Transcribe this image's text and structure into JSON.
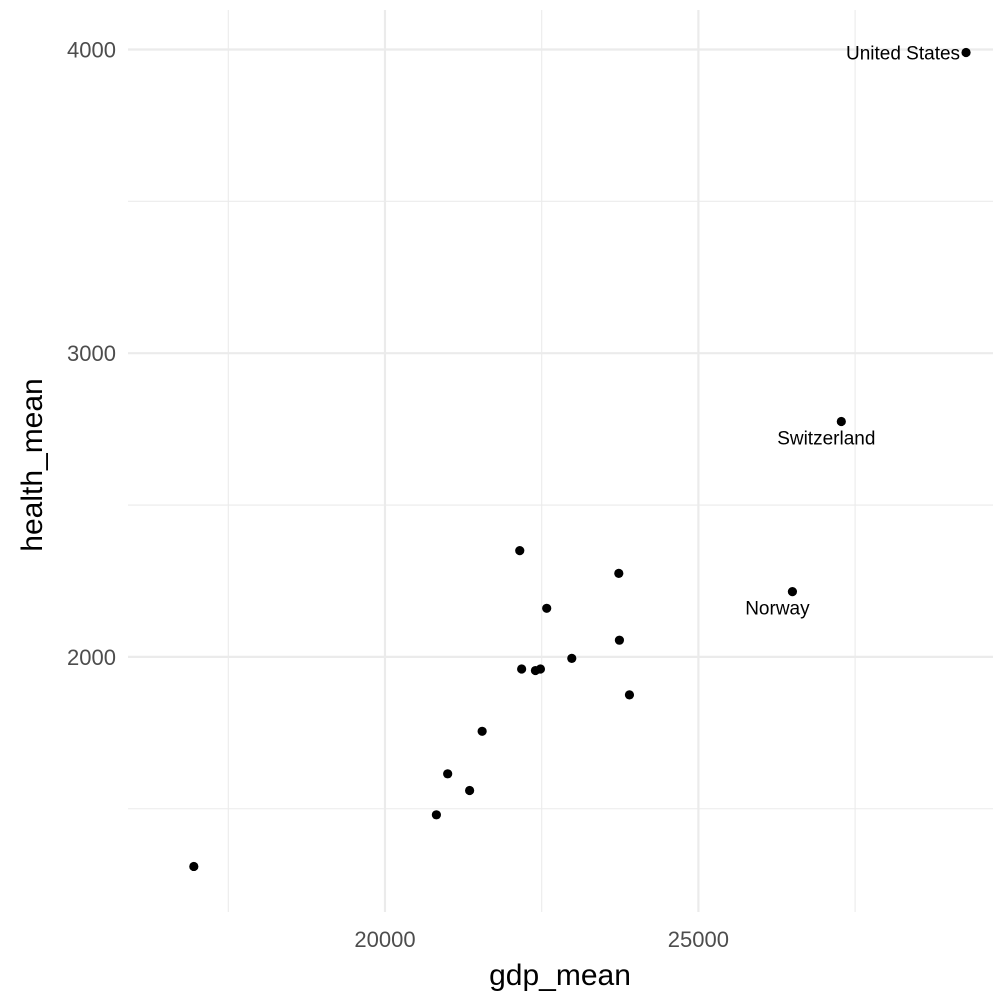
{
  "chart_data": {
    "type": "scatter",
    "title": "",
    "xlabel": "gdp_mean",
    "ylabel": "health_mean",
    "xlim": [
      15900,
      29700
    ],
    "ylim": [
      1160,
      4130
    ],
    "x_major_ticks": [
      20000,
      25000
    ],
    "x_minor_ticks": [
      17500,
      22500,
      27500
    ],
    "y_major_ticks": [
      2000,
      3000,
      4000
    ],
    "y_minor_ticks": [
      1500,
      2500,
      3500
    ],
    "x_tick_labels": [
      "20000",
      "25000"
    ],
    "y_tick_labels": [
      "2000",
      "3000",
      "4000"
    ],
    "grid": true,
    "legend": "none",
    "points": [
      {
        "x": 16950,
        "y": 1310,
        "label": ""
      },
      {
        "x": 20820,
        "y": 1480,
        "label": ""
      },
      {
        "x": 21000,
        "y": 1615,
        "label": ""
      },
      {
        "x": 21350,
        "y": 1560,
        "label": ""
      },
      {
        "x": 21550,
        "y": 1755,
        "label": ""
      },
      {
        "x": 22150,
        "y": 2350,
        "label": ""
      },
      {
        "x": 22180,
        "y": 1960,
        "label": ""
      },
      {
        "x": 22400,
        "y": 1955,
        "label": ""
      },
      {
        "x": 22480,
        "y": 1960,
        "label": ""
      },
      {
        "x": 22580,
        "y": 2160,
        "label": ""
      },
      {
        "x": 22980,
        "y": 1995,
        "label": ""
      },
      {
        "x": 23730,
        "y": 2275,
        "label": ""
      },
      {
        "x": 23740,
        "y": 2055,
        "label": ""
      },
      {
        "x": 23900,
        "y": 1875,
        "label": ""
      },
      {
        "x": 26500,
        "y": 2215,
        "label": "Norway"
      },
      {
        "x": 27280,
        "y": 2775,
        "label": "Switzerland"
      },
      {
        "x": 29270,
        "y": 3990,
        "label": "United States"
      }
    ]
  }
}
